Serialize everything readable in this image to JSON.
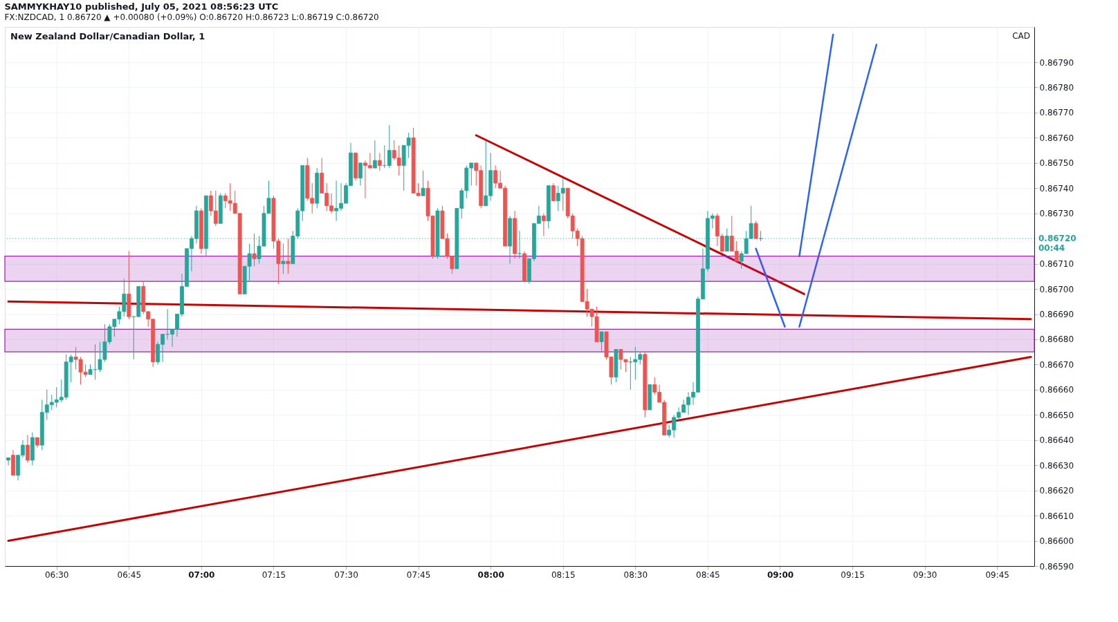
{
  "chart_data": {
    "type": "candlestick",
    "title": "New Zealand Dollar/Canadian Dollar, 1",
    "annotations": [
      "SAMMYKHAY10 published, July 05, 2021 08:56:23 UTC",
      "FX:NZDCAD, 1  0.86720 ▲ +0.00080 (+0.09%)  O:0.86720  H:0.86723  L:0.86719  C:0.86720",
      "CAD"
    ],
    "x": [
      "2021-07-05T06:20",
      "2021-07-05T06:21",
      "2021-07-05T06:22",
      "2021-07-05T06:23",
      "2021-07-05T06:24",
      "2021-07-05T06:25",
      "2021-07-05T06:26",
      "2021-07-05T06:27",
      "2021-07-05T06:28",
      "2021-07-05T06:29",
      "2021-07-05T06:30",
      "2021-07-05T06:31",
      "2021-07-05T06:32",
      "2021-07-05T06:33",
      "2021-07-05T06:34",
      "2021-07-05T06:35",
      "2021-07-05T06:36",
      "2021-07-05T06:37",
      "2021-07-05T06:38",
      "2021-07-05T06:39",
      "2021-07-05T06:40",
      "2021-07-05T06:41",
      "2021-07-05T06:42",
      "2021-07-05T06:43",
      "2021-07-05T06:44",
      "2021-07-05T06:45",
      "2021-07-05T06:46",
      "2021-07-05T06:47",
      "2021-07-05T06:48",
      "2021-07-05T06:49",
      "2021-07-05T06:50",
      "2021-07-05T06:51",
      "2021-07-05T06:52",
      "2021-07-05T06:53",
      "2021-07-05T06:54",
      "2021-07-05T06:55",
      "2021-07-05T06:56",
      "2021-07-05T06:57",
      "2021-07-05T06:58",
      "2021-07-05T06:59",
      "2021-07-05T07:00",
      "2021-07-05T07:01",
      "2021-07-05T07:02",
      "2021-07-05T07:03",
      "2021-07-05T07:04",
      "2021-07-05T07:05",
      "2021-07-05T07:06",
      "2021-07-05T07:07",
      "2021-07-05T07:08",
      "2021-07-05T07:09",
      "2021-07-05T07:10",
      "2021-07-05T07:11",
      "2021-07-05T07:12",
      "2021-07-05T07:13",
      "2021-07-05T07:14",
      "2021-07-05T07:15",
      "2021-07-05T07:16",
      "2021-07-05T07:17",
      "2021-07-05T07:18",
      "2021-07-05T07:19",
      "2021-07-05T07:20",
      "2021-07-05T07:21",
      "2021-07-05T07:22",
      "2021-07-05T07:23",
      "2021-07-05T07:24",
      "2021-07-05T07:25",
      "2021-07-05T07:26",
      "2021-07-05T07:27",
      "2021-07-05T07:28",
      "2021-07-05T07:29",
      "2021-07-05T07:30",
      "2021-07-05T07:31",
      "2021-07-05T07:32",
      "2021-07-05T07:33",
      "2021-07-05T07:34",
      "2021-07-05T07:35",
      "2021-07-05T07:36",
      "2021-07-05T07:37",
      "2021-07-05T07:38",
      "2021-07-05T07:39",
      "2021-07-05T07:40",
      "2021-07-05T07:41",
      "2021-07-05T07:42",
      "2021-07-05T07:43",
      "2021-07-05T07:44",
      "2021-07-05T07:45",
      "2021-07-05T07:46",
      "2021-07-05T07:47",
      "2021-07-05T07:48",
      "2021-07-05T07:49",
      "2021-07-05T07:50",
      "2021-07-05T07:51",
      "2021-07-05T07:52",
      "2021-07-05T07:53",
      "2021-07-05T07:54",
      "2021-07-05T07:55",
      "2021-07-05T07:56",
      "2021-07-05T07:57",
      "2021-07-05T07:58",
      "2021-07-05T07:59",
      "2021-07-05T08:00",
      "2021-07-05T08:01",
      "2021-07-05T08:02",
      "2021-07-05T08:03",
      "2021-07-05T08:04",
      "2021-07-05T08:05",
      "2021-07-05T08:06",
      "2021-07-05T08:07",
      "2021-07-05T08:08",
      "2021-07-05T08:09",
      "2021-07-05T08:10",
      "2021-07-05T08:11",
      "2021-07-05T08:12",
      "2021-07-05T08:13",
      "2021-07-05T08:14",
      "2021-07-05T08:15",
      "2021-07-05T08:16",
      "2021-07-05T08:17",
      "2021-07-05T08:18",
      "2021-07-05T08:19",
      "2021-07-05T08:20",
      "2021-07-05T08:21",
      "2021-07-05T08:22",
      "2021-07-05T08:23",
      "2021-07-05T08:24",
      "2021-07-05T08:25",
      "2021-07-05T08:26",
      "2021-07-05T08:27",
      "2021-07-05T08:28",
      "2021-07-05T08:29",
      "2021-07-05T08:30",
      "2021-07-05T08:31",
      "2021-07-05T08:32",
      "2021-07-05T08:33",
      "2021-07-05T08:34",
      "2021-07-05T08:35",
      "2021-07-05T08:36",
      "2021-07-05T08:37",
      "2021-07-05T08:38",
      "2021-07-05T08:39",
      "2021-07-05T08:40",
      "2021-07-05T08:41",
      "2021-07-05T08:42",
      "2021-07-05T08:43",
      "2021-07-05T08:44",
      "2021-07-05T08:45",
      "2021-07-05T08:46",
      "2021-07-05T08:47",
      "2021-07-05T08:48",
      "2021-07-05T08:49",
      "2021-07-05T08:50",
      "2021-07-05T08:51",
      "2021-07-05T08:52",
      "2021-07-05T08:53",
      "2021-07-05T08:54",
      "2021-07-05T08:55",
      "2021-07-05T08:56"
    ],
    "ohlc": [
      [
        0.86632,
        0.86633,
        0.8663,
        0.86633
      ],
      [
        0.86634,
        0.86636,
        0.86626,
        0.86626
      ],
      [
        0.86626,
        0.86634,
        0.86624,
        0.86634
      ],
      [
        0.86634,
        0.8664,
        0.86633,
        0.86638
      ],
      [
        0.86638,
        0.86642,
        0.86631,
        0.86632
      ],
      [
        0.86632,
        0.86643,
        0.8663,
        0.86641
      ],
      [
        0.86641,
        0.86641,
        0.86637,
        0.86638
      ],
      [
        0.86638,
        0.86656,
        0.86636,
        0.86651
      ],
      [
        0.86651,
        0.8666,
        0.86648,
        0.86654
      ],
      [
        0.86654,
        0.86658,
        0.86652,
        0.86655
      ],
      [
        0.86655,
        0.86661,
        0.86653,
        0.86656
      ],
      [
        0.86656,
        0.86664,
        0.86655,
        0.86657
      ],
      [
        0.86657,
        0.86674,
        0.86656,
        0.86671
      ],
      [
        0.86671,
        0.86674,
        0.86663,
        0.86673
      ],
      [
        0.86673,
        0.86677,
        0.86668,
        0.86672
      ],
      [
        0.86672,
        0.86673,
        0.86662,
        0.86667
      ],
      [
        0.86667,
        0.8667,
        0.86665,
        0.86666
      ],
      [
        0.86666,
        0.8667,
        0.86666,
        0.86668
      ],
      [
        0.86668,
        0.86678,
        0.86664,
        0.86668
      ],
      [
        0.86668,
        0.86679,
        0.86667,
        0.86672
      ],
      [
        0.86672,
        0.86686,
        0.86671,
        0.86679
      ],
      [
        0.86679,
        0.86686,
        0.86678,
        0.86685
      ],
      [
        0.86685,
        0.86688,
        0.86681,
        0.86688
      ],
      [
        0.86688,
        0.86693,
        0.86686,
        0.86691
      ],
      [
        0.86691,
        0.86704,
        0.86689,
        0.86698
      ],
      [
        0.86698,
        0.86715,
        0.86688,
        0.86689
      ],
      [
        0.86689,
        0.86689,
        0.86672,
        0.86689
      ],
      [
        0.86689,
        0.86701,
        0.86689,
        0.86701
      ],
      [
        0.86701,
        0.86703,
        0.8669,
        0.86691
      ],
      [
        0.86691,
        0.86691,
        0.86685,
        0.86688
      ],
      [
        0.86688,
        0.86688,
        0.86669,
        0.86671
      ],
      [
        0.86671,
        0.86679,
        0.8667,
        0.86678
      ],
      [
        0.86678,
        0.86682,
        0.86671,
        0.86682
      ],
      [
        0.86682,
        0.86692,
        0.8668,
        0.86682
      ],
      [
        0.86682,
        0.86684,
        0.86677,
        0.86684
      ],
      [
        0.86684,
        0.8669,
        0.86681,
        0.8669
      ],
      [
        0.8669,
        0.86706,
        0.86689,
        0.86701
      ],
      [
        0.86701,
        0.86716,
        0.86701,
        0.86716
      ],
      [
        0.86716,
        0.86721,
        0.86707,
        0.8672
      ],
      [
        0.8672,
        0.86733,
        0.86718,
        0.86731
      ],
      [
        0.86731,
        0.86732,
        0.86714,
        0.86716
      ],
      [
        0.86716,
        0.86737,
        0.86713,
        0.86737
      ],
      [
        0.86737,
        0.86739,
        0.86729,
        0.86731
      ],
      [
        0.86731,
        0.86739,
        0.86725,
        0.86726
      ],
      [
        0.86726,
        0.86738,
        0.86726,
        0.86737
      ],
      [
        0.86737,
        0.86738,
        0.86732,
        0.86735
      ],
      [
        0.86735,
        0.86742,
        0.86731,
        0.86734
      ],
      [
        0.86734,
        0.86739,
        0.8673,
        0.8673
      ],
      [
        0.8673,
        0.8673,
        0.86698,
        0.86698
      ],
      [
        0.86698,
        0.86709,
        0.86698,
        0.86709
      ],
      [
        0.86709,
        0.86718,
        0.86703,
        0.86714
      ],
      [
        0.86714,
        0.86722,
        0.86709,
        0.86712
      ],
      [
        0.86712,
        0.86721,
        0.8671,
        0.86717
      ],
      [
        0.86717,
        0.86733,
        0.86717,
        0.8673
      ],
      [
        0.8673,
        0.86743,
        0.8673,
        0.86736
      ],
      [
        0.86736,
        0.86737,
        0.86716,
        0.86719
      ],
      [
        0.86719,
        0.8672,
        0.86702,
        0.8671
      ],
      [
        0.8671,
        0.86718,
        0.86706,
        0.86711
      ],
      [
        0.86711,
        0.8672,
        0.86706,
        0.8671
      ],
      [
        0.8671,
        0.86723,
        0.8671,
        0.86721
      ],
      [
        0.86721,
        0.86732,
        0.8672,
        0.86731
      ],
      [
        0.86731,
        0.86749,
        0.86727,
        0.86749
      ],
      [
        0.86749,
        0.86752,
        0.86735,
        0.86736
      ],
      [
        0.86736,
        0.86742,
        0.8673,
        0.86734
      ],
      [
        0.86734,
        0.86748,
        0.86732,
        0.86746
      ],
      [
        0.86746,
        0.86752,
        0.86738,
        0.86738
      ],
      [
        0.86738,
        0.86742,
        0.86731,
        0.86733
      ],
      [
        0.86733,
        0.86738,
        0.8673,
        0.86731
      ],
      [
        0.86731,
        0.86743,
        0.86727,
        0.86732
      ],
      [
        0.86732,
        0.86742,
        0.86731,
        0.86734
      ],
      [
        0.86734,
        0.86742,
        0.86734,
        0.86741
      ],
      [
        0.86741,
        0.86758,
        0.86741,
        0.86754
      ],
      [
        0.86754,
        0.86754,
        0.86743,
        0.86744
      ],
      [
        0.86744,
        0.8675,
        0.86741,
        0.8675
      ],
      [
        0.8675,
        0.86751,
        0.86736,
        0.86749
      ],
      [
        0.86749,
        0.86754,
        0.86748,
        0.86748
      ],
      [
        0.86748,
        0.86759,
        0.86748,
        0.86751
      ],
      [
        0.86751,
        0.86754,
        0.86747,
        0.86749
      ],
      [
        0.86749,
        0.86757,
        0.86748,
        0.86749
      ],
      [
        0.86749,
        0.86765,
        0.86748,
        0.86755
      ],
      [
        0.86755,
        0.86759,
        0.86751,
        0.86752
      ],
      [
        0.86752,
        0.86757,
        0.86745,
        0.86749
      ],
      [
        0.86749,
        0.86757,
        0.86739,
        0.86757
      ],
      [
        0.86757,
        0.86762,
        0.86752,
        0.8676
      ],
      [
        0.8676,
        0.86764,
        0.86738,
        0.86738
      ],
      [
        0.86738,
        0.86742,
        0.86737,
        0.86737
      ],
      [
        0.86737,
        0.86747,
        0.86737,
        0.8674
      ],
      [
        0.8674,
        0.86743,
        0.86727,
        0.86729
      ],
      [
        0.86729,
        0.86729,
        0.86712,
        0.86713
      ],
      [
        0.86713,
        0.86732,
        0.86712,
        0.86731
      ],
      [
        0.86731,
        0.86733,
        0.8672,
        0.8672
      ],
      [
        0.8672,
        0.86722,
        0.86712,
        0.86713
      ],
      [
        0.86713,
        0.86713,
        0.86706,
        0.86708
      ],
      [
        0.86708,
        0.86732,
        0.86708,
        0.86732
      ],
      [
        0.86732,
        0.8674,
        0.86728,
        0.86739
      ],
      [
        0.86739,
        0.86749,
        0.86736,
        0.86748
      ],
      [
        0.86748,
        0.8675,
        0.86741,
        0.8675
      ],
      [
        0.8675,
        0.8675,
        0.86741,
        0.86747
      ],
      [
        0.86747,
        0.86749,
        0.86732,
        0.86733
      ],
      [
        0.86733,
        0.86759,
        0.86733,
        0.86737
      ],
      [
        0.86737,
        0.86754,
        0.86735,
        0.86747
      ],
      [
        0.86747,
        0.86749,
        0.8674,
        0.86742
      ],
      [
        0.86742,
        0.86747,
        0.8674,
        0.8674
      ],
      [
        0.8674,
        0.86741,
        0.86717,
        0.86717
      ],
      [
        0.86717,
        0.86729,
        0.8671,
        0.86728
      ],
      [
        0.86728,
        0.86731,
        0.86712,
        0.86714
      ],
      [
        0.86714,
        0.86723,
        0.86712,
        0.86714
      ],
      [
        0.86714,
        0.86715,
        0.86703,
        0.86703
      ],
      [
        0.86703,
        0.86712,
        0.86702,
        0.86712
      ],
      [
        0.86712,
        0.86726,
        0.86711,
        0.86726
      ],
      [
        0.86726,
        0.86733,
        0.86726,
        0.86729
      ],
      [
        0.86729,
        0.8673,
        0.86721,
        0.86727
      ],
      [
        0.86727,
        0.86741,
        0.86724,
        0.86741
      ],
      [
        0.86741,
        0.86742,
        0.86735,
        0.86735
      ],
      [
        0.86735,
        0.86741,
        0.86731,
        0.86738
      ],
      [
        0.86738,
        0.86744,
        0.86731,
        0.8674
      ],
      [
        0.8674,
        0.8674,
        0.86728,
        0.86729
      ],
      [
        0.86729,
        0.8673,
        0.8672,
        0.86723
      ],
      [
        0.86723,
        0.86724,
        0.86717,
        0.8672
      ],
      [
        0.8672,
        0.86721,
        0.86695,
        0.86695
      ],
      [
        0.86695,
        0.867,
        0.86689,
        0.86692
      ],
      [
        0.86692,
        0.86692,
        0.86685,
        0.86689
      ],
      [
        0.86689,
        0.86693,
        0.86679,
        0.86679
      ],
      [
        0.86679,
        0.86683,
        0.86675,
        0.86683
      ],
      [
        0.86683,
        0.86683,
        0.86672,
        0.86673
      ],
      [
        0.86673,
        0.86673,
        0.86662,
        0.86665
      ],
      [
        0.86665,
        0.86676,
        0.86663,
        0.86676
      ],
      [
        0.86676,
        0.86676,
        0.86668,
        0.86672
      ],
      [
        0.86672,
        0.86672,
        0.86667,
        0.86671
      ],
      [
        0.86671,
        0.86673,
        0.8666,
        0.86671
      ],
      [
        0.86671,
        0.86677,
        0.86664,
        0.86672
      ],
      [
        0.86672,
        0.86675,
        0.8667,
        0.86674
      ],
      [
        0.86674,
        0.86675,
        0.86649,
        0.86652
      ],
      [
        0.86652,
        0.86662,
        0.86652,
        0.86662
      ],
      [
        0.86662,
        0.86665,
        0.86658,
        0.86659
      ],
      [
        0.86659,
        0.86662,
        0.86655,
        0.86655
      ],
      [
        0.86655,
        0.86656,
        0.86642,
        0.86642
      ],
      [
        0.86642,
        0.86646,
        0.86641,
        0.86644
      ],
      [
        0.86644,
        0.8665,
        0.86641,
        0.86649
      ],
      [
        0.86649,
        0.86653,
        0.86648,
        0.86651
      ],
      [
        0.86651,
        0.86656,
        0.86651,
        0.86654
      ],
      [
        0.86654,
        0.86659,
        0.8665,
        0.86657
      ],
      [
        0.86657,
        0.86663,
        0.86654,
        0.86659
      ],
      [
        0.86659,
        0.86697,
        0.86659,
        0.86696
      ],
      [
        0.86696,
        0.86716,
        0.86696,
        0.86708
      ],
      [
        0.86708,
        0.86731,
        0.86707,
        0.86728
      ],
      [
        0.86728,
        0.8673,
        0.86724,
        0.86729
      ],
      [
        0.86729,
        0.8673,
        0.86717,
        0.86721
      ],
      [
        0.86721,
        0.86722,
        0.86714,
        0.86715
      ],
      [
        0.86715,
        0.86724,
        0.86715,
        0.86721
      ],
      [
        0.86721,
        0.86729,
        0.86715,
        0.86715
      ],
      [
        0.86715,
        0.86719,
        0.86711,
        0.86711
      ],
      [
        0.86711,
        0.86715,
        0.86708,
        0.86714
      ],
      [
        0.86714,
        0.86723,
        0.86714,
        0.8672
      ],
      [
        0.8672,
        0.86733,
        0.8672,
        0.86726
      ],
      [
        0.86726,
        0.86727,
        0.8672,
        0.8672
      ],
      [
        0.8672,
        0.86723,
        0.86719,
        0.8672
      ]
    ],
    "colors": [
      "#26a69a",
      "#ef5350",
      "#26a69a",
      "#26a69a",
      "#ef5350",
      "#26a69a",
      "#ef5350",
      "#26a69a",
      "#26a69a",
      "#26a69a",
      "#26a69a",
      "#26a69a",
      "#26a69a",
      "#26a69a",
      "#ef5350",
      "#ef5350",
      "#ef5350",
      "#26a69a",
      "#26a69a",
      "#26a69a",
      "#26a69a",
      "#26a69a",
      "#26a69a",
      "#26a69a",
      "#26a69a",
      "#ef5350",
      "#26a69a",
      "#26a69a",
      "#ef5350",
      "#ef5350",
      "#ef5350",
      "#26a69a",
      "#26a69a",
      "#26a69a",
      "#26a69a",
      "#26a69a",
      "#26a69a",
      "#26a69a",
      "#26a69a",
      "#26a69a",
      "#ef5350",
      "#26a69a",
      "#ef5350",
      "#ef5350",
      "#26a69a",
      "#ef5350",
      "#ef5350",
      "#ef5350",
      "#ef5350",
      "#26a69a",
      "#26a69a",
      "#ef5350",
      "#26a69a",
      "#26a69a",
      "#26a69a",
      "#ef5350",
      "#ef5350",
      "#26a69a",
      "#ef5350",
      "#26a69a",
      "#26a69a",
      "#26a69a",
      "#ef5350",
      "#ef5350",
      "#26a69a",
      "#ef5350",
      "#ef5350",
      "#ef5350",
      "#26a69a",
      "#26a69a",
      "#26a69a",
      "#26a69a",
      "#ef5350",
      "#26a69a",
      "#ef5350",
      "#ef5350",
      "#26a69a",
      "#ef5350",
      "#26a69a",
      "#26a69a",
      "#ef5350",
      "#ef5350",
      "#26a69a",
      "#26a69a",
      "#ef5350",
      "#ef5350",
      "#26a69a",
      "#ef5350",
      "#ef5350",
      "#26a69a",
      "#ef5350",
      "#ef5350",
      "#ef5350",
      "#26a69a",
      "#26a69a",
      "#26a69a",
      "#26a69a",
      "#ef5350",
      "#ef5350",
      "#26a69a",
      "#26a69a",
      "#ef5350",
      "#ef5350",
      "#ef5350",
      "#26a69a",
      "#ef5350",
      "#26a69a",
      "#ef5350",
      "#26a69a",
      "#26a69a",
      "#26a69a",
      "#ef5350",
      "#26a69a",
      "#ef5350",
      "#26a69a",
      "#26a69a",
      "#ef5350",
      "#ef5350",
      "#ef5350",
      "#ef5350",
      "#ef5350",
      "#ef5350",
      "#ef5350",
      "#26a69a",
      "#ef5350",
      "#ef5350",
      "#26a69a",
      "#ef5350",
      "#ef5350",
      "#26a69a",
      "#26a69a",
      "#26a69a",
      "#ef5350",
      "#26a69a",
      "#ef5350",
      "#ef5350",
      "#ef5350",
      "#26a69a",
      "#26a69a",
      "#26a69a",
      "#26a69a",
      "#26a69a",
      "#26a69a",
      "#26a69a",
      "#26a69a",
      "#26a69a",
      "#26a69a",
      "#ef5350",
      "#ef5350",
      "#26a69a",
      "#ef5350",
      "#ef5350",
      "#26a69a",
      "#26a69a",
      "#26a69a",
      "#ef5350",
      "#26a69a"
    ],
    "series": [
      {
        "type": "line",
        "color": "#cc0000",
        "x": [
          "2021-07-05T06:20",
          "2021-07-05T09:52"
        ],
        "values": [
          0.86695,
          0.86688
        ]
      },
      {
        "type": "line",
        "color": "#cc0000",
        "x": [
          "2021-07-05T06:20",
          "2021-07-05T09:52"
        ],
        "values": [
          0.866,
          0.86673
        ]
      },
      {
        "type": "line",
        "color": "#cc0000",
        "x": [
          "2021-07-05T07:57",
          "2021-07-05T09:05"
        ],
        "values": [
          0.86761,
          0.86698
        ]
      },
      {
        "type": "line",
        "color": "#2962ff",
        "x": [
          "2021-07-05T08:55",
          "2021-07-05T09:01"
        ],
        "values": [
          0.86716,
          0.86685
        ]
      },
      {
        "type": "line",
        "color": "#2962ff",
        "x": [
          "2021-07-05T09:04",
          "2021-07-05T09:11"
        ],
        "values": [
          0.86713,
          0.86801
        ]
      },
      {
        "type": "line",
        "color": "#2962ff",
        "x": [
          "2021-07-05T09:04",
          "2021-07-05T09:20"
        ],
        "values": [
          0.86685,
          0.86797
        ]
      }
    ],
    "bands": [
      {
        "axis": "y",
        "from": 0.86703,
        "to": 0.86713,
        "color": "#9c27b0"
      },
      {
        "axis": "y",
        "from": 0.86675,
        "to": 0.86684,
        "color": "#9c27b0"
      }
    ],
    "ref_lines": [
      {
        "axis": "y",
        "value": 0.8672,
        "label": "0.86720 00:44",
        "color": "#26a69a",
        "line_style": "dotted"
      }
    ],
    "xlim": [
      "2021-07-05T06:20",
      "2021-07-05T09:52"
    ],
    "xticks": [
      {
        "value": "2021-07-05T06:30",
        "label": "06:30"
      },
      {
        "value": "2021-07-05T06:45",
        "label": "06:45"
      },
      {
        "value": "2021-07-05T07:00",
        "label": "07:00"
      },
      {
        "value": "2021-07-05T07:15",
        "label": "07:15"
      },
      {
        "value": "2021-07-05T07:30",
        "label": "07:30"
      },
      {
        "value": "2021-07-05T07:45",
        "label": "07:45"
      },
      {
        "value": "2021-07-05T08:00",
        "label": "08:00"
      },
      {
        "value": "2021-07-05T08:15",
        "label": "08:15"
      },
      {
        "value": "2021-07-05T08:30",
        "label": "08:30"
      },
      {
        "value": "2021-07-05T08:45",
        "label": "08:45"
      },
      {
        "value": "2021-07-05T09:00",
        "label": "09:00"
      },
      {
        "value": "2021-07-05T09:15",
        "label": "09:15"
      },
      {
        "value": "2021-07-05T09:30",
        "label": "09:30"
      },
      {
        "value": "2021-07-05T09:45",
        "label": "09:45"
      }
    ],
    "ylim": [
      0.8659,
      0.86804
    ],
    "yticks": [
      {
        "value": 0.8659,
        "label": "0.86590"
      },
      {
        "value": 0.866,
        "label": "0.86600"
      },
      {
        "value": 0.8661,
        "label": "0.86610"
      },
      {
        "value": 0.8662,
        "label": "0.86620"
      },
      {
        "value": 0.8663,
        "label": "0.86630"
      },
      {
        "value": 0.8664,
        "label": "0.86640"
      },
      {
        "value": 0.8665,
        "label": "0.86650"
      },
      {
        "value": 0.8666,
        "label": "0.86660"
      },
      {
        "value": 0.8667,
        "label": "0.86670"
      },
      {
        "value": 0.8668,
        "label": "0.86680"
      },
      {
        "value": 0.8669,
        "label": "0.86690"
      },
      {
        "value": 0.867,
        "label": "0.86700"
      },
      {
        "value": 0.8671,
        "label": "0.86710"
      },
      {
        "value": 0.8673,
        "label": "0.86730"
      },
      {
        "value": 0.8674,
        "label": "0.86740"
      },
      {
        "value": 0.8675,
        "label": "0.86750"
      },
      {
        "value": 0.8676,
        "label": "0.86760"
      },
      {
        "value": 0.8677,
        "label": "0.86770"
      },
      {
        "value": 0.8678,
        "label": "0.86780"
      },
      {
        "value": 0.8679,
        "label": "0.86790"
      }
    ],
    "grid": true
  }
}
